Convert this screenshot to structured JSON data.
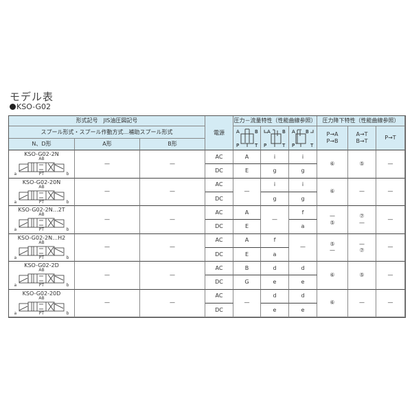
{
  "title": "モデル表",
  "subtitle": "KSO-G02",
  "header": {
    "model_code": "形式記号　JIS油圧図記号",
    "spool": "スプール形式・スプール作動方式…補助スプール形式",
    "nd": "N、D形",
    "a": "A形",
    "b": "B形",
    "power": "電源",
    "pq": "圧力－流量特性（性能曲線参照）",
    "pd": "圧力降下特性（性能曲線参照）",
    "pab": [
      "P→A",
      "P→B"
    ],
    "atbt": [
      "A→T",
      "B→T"
    ],
    "pt": "P→T"
  },
  "rows": [
    {
      "model": "KSO-G02-2N",
      "a": "—",
      "b": "—",
      "ac": [
        "A",
        "i",
        "i"
      ],
      "dc": [
        "E",
        "g",
        "g"
      ],
      "pd": [
        [
          "⑥"
        ],
        [
          "⑤"
        ],
        [
          "—"
        ]
      ]
    },
    {
      "model": "KSO-G02-20N",
      "a": "—",
      "b": "—",
      "ac": [
        "—",
        "i",
        "i"
      ],
      "dc": [
        "—",
        "g",
        "g"
      ],
      "merge": 0,
      "pd": [
        [
          "⑥"
        ],
        [
          "—"
        ],
        [
          "—"
        ]
      ]
    },
    {
      "model": "KSO-G02-2N…2T",
      "a": "—",
      "b": "—",
      "ac": [
        "A",
        "—",
        "f"
      ],
      "dc": [
        "E",
        "—",
        "a"
      ],
      "merge": 1,
      "pd": [
        [
          "—",
          "⑤"
        ],
        [
          "⑦",
          "—"
        ],
        [
          "—"
        ]
      ]
    },
    {
      "model": "KSO-G02-2N…H2",
      "a": "—",
      "b": "—",
      "ac": [
        "A",
        "f",
        "—"
      ],
      "dc": [
        "E",
        "a",
        "—"
      ],
      "merge": 2,
      "pd": [
        [
          "⑤",
          "—"
        ],
        [
          "—",
          "⑦"
        ],
        [
          "—"
        ]
      ]
    },
    {
      "model": "KSO-G02-2D",
      "a": "—",
      "b": "—",
      "ac": [
        "B",
        "d",
        "d"
      ],
      "dc": [
        "G",
        "e",
        "e"
      ],
      "pd": [
        [
          "⑥"
        ],
        [
          "⑤"
        ],
        [
          "—"
        ]
      ]
    },
    {
      "model": "KSO-G02-20D",
      "a": "—",
      "b": "—",
      "ac": [
        "—",
        "d",
        "d"
      ],
      "dc": [
        "—",
        "e",
        "e"
      ],
      "merge": 0,
      "pd": [
        [
          "⑥"
        ],
        [
          "—"
        ],
        [
          "—"
        ]
      ]
    }
  ],
  "power_labels": [
    "AC",
    "DC"
  ],
  "symbol_labels": {
    "ab": "AB",
    "a": "a",
    "b": "b",
    "pt": "PT"
  },
  "colors": {
    "header_bg": "#d4ebf4"
  }
}
